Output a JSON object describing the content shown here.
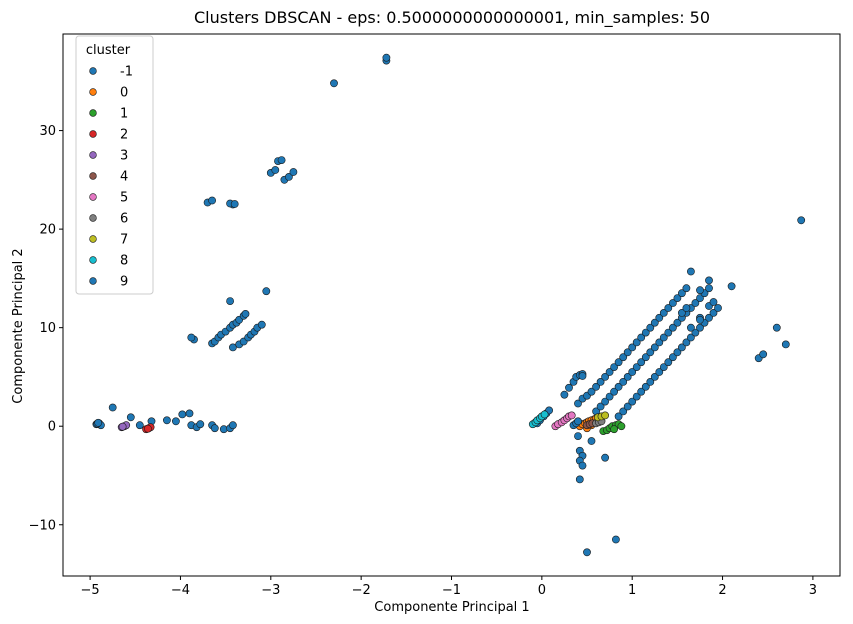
{
  "chart_data": {
    "type": "scatter",
    "title": "Clusters DBSCAN - eps: 0.5000000000000001, min_samples: 50",
    "xlabel": "Componente Principal 1",
    "ylabel": "Componente Principal 2",
    "xlim": [
      -5.3,
      3.3
    ],
    "ylim": [
      -15.2,
      39.8
    ],
    "xticks": [
      -5,
      -4,
      -3,
      -2,
      -1,
      0,
      1,
      2,
      3
    ],
    "yticks": [
      -10,
      0,
      10,
      20,
      30
    ],
    "grid": false,
    "legend": {
      "title": "cluster",
      "position": "top-left"
    },
    "series": [
      {
        "name": "-1",
        "color": "#1f77b4",
        "points": [
          [
            -4.93,
            0.2
          ],
          [
            -4.9,
            0.3
          ],
          [
            -4.88,
            0.1
          ],
          [
            -4.92,
            0.25
          ],
          [
            -4.91,
            0.35
          ],
          [
            -4.75,
            1.9
          ],
          [
            -4.55,
            0.9
          ],
          [
            -4.45,
            0.1
          ],
          [
            -4.32,
            0.5
          ],
          [
            -4.15,
            0.6
          ],
          [
            -4.05,
            0.5
          ],
          [
            -3.98,
            1.2
          ],
          [
            -3.9,
            1.3
          ],
          [
            -3.88,
            0.1
          ],
          [
            -3.82,
            -0.1
          ],
          [
            -3.78,
            0.2
          ],
          [
            -3.65,
            0.1
          ],
          [
            -3.62,
            -0.2
          ],
          [
            -3.52,
            -0.3
          ],
          [
            -3.45,
            -0.2
          ],
          [
            -3.42,
            0.1
          ],
          [
            -3.85,
            8.8
          ],
          [
            -3.88,
            9.0
          ],
          [
            -3.65,
            8.4
          ],
          [
            -3.62,
            8.6
          ],
          [
            -3.58,
            9.0
          ],
          [
            -3.55,
            9.3
          ],
          [
            -3.5,
            9.6
          ],
          [
            -3.45,
            10.0
          ],
          [
            -3.42,
            10.3
          ],
          [
            -3.38,
            10.5
          ],
          [
            -3.35,
            10.8
          ],
          [
            -3.3,
            11.2
          ],
          [
            -3.28,
            11.4
          ],
          [
            -3.45,
            12.7
          ],
          [
            -3.42,
            8.0
          ],
          [
            -3.35,
            8.3
          ],
          [
            -3.3,
            8.6
          ],
          [
            -3.25,
            9.0
          ],
          [
            -3.22,
            9.3
          ],
          [
            -3.18,
            9.6
          ],
          [
            -3.15,
            10.0
          ],
          [
            -3.1,
            10.3
          ],
          [
            -3.05,
            13.7
          ],
          [
            -3.7,
            22.7
          ],
          [
            -3.65,
            22.9
          ],
          [
            -3.42,
            22.5
          ],
          [
            -3.45,
            22.6
          ],
          [
            -3.4,
            22.55
          ],
          [
            -3.0,
            25.7
          ],
          [
            -2.95,
            26.0
          ],
          [
            -2.92,
            26.9
          ],
          [
            -2.88,
            27.0
          ],
          [
            -2.85,
            25.0
          ],
          [
            -2.8,
            25.3
          ],
          [
            -2.75,
            25.8
          ],
          [
            -2.3,
            34.8
          ],
          [
            -1.72,
            37.1
          ],
          [
            -1.72,
            37.4
          ],
          [
            -0.05,
            0.3
          ],
          [
            -0.02,
            0.6
          ],
          [
            0.02,
            1.0
          ],
          [
            0.05,
            1.3
          ],
          [
            0.08,
            1.6
          ],
          [
            0.25,
            3.2
          ],
          [
            0.3,
            3.9
          ],
          [
            0.35,
            4.5
          ],
          [
            0.38,
            5.0
          ],
          [
            0.42,
            5.2
          ],
          [
            0.45,
            5.3
          ],
          [
            0.4,
            2.3
          ],
          [
            0.45,
            2.8
          ],
          [
            0.5,
            3.1
          ],
          [
            0.55,
            3.5
          ],
          [
            0.6,
            4.0
          ],
          [
            0.65,
            4.5
          ],
          [
            0.7,
            5.0
          ],
          [
            0.75,
            5.5
          ],
          [
            0.8,
            6.0
          ],
          [
            0.85,
            6.5
          ],
          [
            0.9,
            7.0
          ],
          [
            0.95,
            7.5
          ],
          [
            1.0,
            8.0
          ],
          [
            1.05,
            8.5
          ],
          [
            1.1,
            9.0
          ],
          [
            1.15,
            9.5
          ],
          [
            1.2,
            10.0
          ],
          [
            1.25,
            10.5
          ],
          [
            1.3,
            11.0
          ],
          [
            1.35,
            11.5
          ],
          [
            1.4,
            12.0
          ],
          [
            1.45,
            12.5
          ],
          [
            1.5,
            13.0
          ],
          [
            1.55,
            13.5
          ],
          [
            1.6,
            14.0
          ],
          [
            1.65,
            15.7
          ],
          [
            0.6,
            1.5
          ],
          [
            0.65,
            2.0
          ],
          [
            0.7,
            2.5
          ],
          [
            0.75,
            3.0
          ],
          [
            0.8,
            3.5
          ],
          [
            0.85,
            4.0
          ],
          [
            0.9,
            4.5
          ],
          [
            0.95,
            5.0
          ],
          [
            1.0,
            5.5
          ],
          [
            1.05,
            6.0
          ],
          [
            1.1,
            6.5
          ],
          [
            1.15,
            7.0
          ],
          [
            1.2,
            7.5
          ],
          [
            1.25,
            8.0
          ],
          [
            1.3,
            8.5
          ],
          [
            1.35,
            9.0
          ],
          [
            1.4,
            9.5
          ],
          [
            1.45,
            10.0
          ],
          [
            1.5,
            10.5
          ],
          [
            1.55,
            11.0
          ],
          [
            1.6,
            11.5
          ],
          [
            1.65,
            12.0
          ],
          [
            1.7,
            12.5
          ],
          [
            1.75,
            13.0
          ],
          [
            1.8,
            13.5
          ],
          [
            1.85,
            14.0
          ],
          [
            0.85,
            1.0
          ],
          [
            0.9,
            1.5
          ],
          [
            0.95,
            2.0
          ],
          [
            1.0,
            2.5
          ],
          [
            1.05,
            3.0
          ],
          [
            1.1,
            3.5
          ],
          [
            1.15,
            4.0
          ],
          [
            1.2,
            4.5
          ],
          [
            1.25,
            5.0
          ],
          [
            1.3,
            5.5
          ],
          [
            1.35,
            6.0
          ],
          [
            1.4,
            6.5
          ],
          [
            1.45,
            7.0
          ],
          [
            1.5,
            7.5
          ],
          [
            1.55,
            8.0
          ],
          [
            1.6,
            8.5
          ],
          [
            1.65,
            9.0
          ],
          [
            1.7,
            9.5
          ],
          [
            1.75,
            10.0
          ],
          [
            1.8,
            10.5
          ],
          [
            1.85,
            11.0
          ],
          [
            1.9,
            11.5
          ],
          [
            1.95,
            12.0
          ],
          [
            1.55,
            11.5
          ],
          [
            1.6,
            12.0
          ],
          [
            1.75,
            13.8
          ],
          [
            1.85,
            14.8
          ],
          [
            2.1,
            14.2
          ],
          [
            1.75,
            11.0
          ],
          [
            1.85,
            12.2
          ],
          [
            1.9,
            12.6
          ],
          [
            1.75,
            10.8
          ],
          [
            1.65,
            10.0
          ],
          [
            0.45,
            5.1
          ],
          [
            0.4,
            -1.0
          ],
          [
            0.42,
            -2.5
          ],
          [
            0.45,
            -3.0
          ],
          [
            0.42,
            -3.5
          ],
          [
            0.45,
            -4.0
          ],
          [
            0.42,
            -5.4
          ],
          [
            0.55,
            -1.5
          ],
          [
            0.7,
            -3.2
          ],
          [
            0.5,
            -12.8
          ],
          [
            0.82,
            -11.5
          ],
          [
            2.4,
            6.9
          ],
          [
            2.45,
            7.3
          ],
          [
            2.6,
            10.0
          ],
          [
            2.7,
            8.3
          ],
          [
            2.87,
            20.9
          ]
        ]
      },
      {
        "name": "0",
        "color": "#ff7f0e",
        "points": [
          [
            0.42,
            0.0
          ],
          [
            0.45,
            0.2
          ],
          [
            0.48,
            0.3
          ],
          [
            0.5,
            0.4
          ],
          [
            0.52,
            0.5
          ],
          [
            0.55,
            0.6
          ],
          [
            0.58,
            0.7
          ],
          [
            0.6,
            0.8
          ],
          [
            0.62,
            0.5
          ],
          [
            0.5,
            -0.2
          ],
          [
            0.55,
            0.1
          ]
        ]
      },
      {
        "name": "1",
        "color": "#2ca02c",
        "points": [
          [
            0.68,
            -0.5
          ],
          [
            0.72,
            -0.4
          ],
          [
            0.75,
            -0.2
          ],
          [
            0.78,
            0.0
          ],
          [
            0.82,
            0.1
          ],
          [
            0.85,
            0.2
          ],
          [
            0.8,
            -0.3
          ],
          [
            0.88,
            0.0
          ]
        ]
      },
      {
        "name": "2",
        "color": "#d62728",
        "points": [
          [
            -4.38,
            -0.3
          ],
          [
            -4.35,
            -0.2
          ],
          [
            -4.33,
            -0.1
          ],
          [
            -4.36,
            -0.25
          ]
        ]
      },
      {
        "name": "3",
        "color": "#9467bd",
        "points": [
          [
            -4.65,
            -0.1
          ],
          [
            -4.62,
            0.0
          ],
          [
            -4.6,
            0.1
          ],
          [
            -4.64,
            -0.05
          ]
        ]
      },
      {
        "name": "4",
        "color": "#8c564b",
        "points": [
          [
            0.5,
            0.1
          ],
          [
            0.53,
            0.2
          ],
          [
            0.56,
            0.3
          ]
        ]
      },
      {
        "name": "5",
        "color": "#e377c2",
        "points": [
          [
            0.15,
            0.0
          ],
          [
            0.18,
            0.2
          ],
          [
            0.22,
            0.4
          ],
          [
            0.25,
            0.6
          ],
          [
            0.28,
            0.8
          ],
          [
            0.3,
            1.0
          ],
          [
            0.33,
            1.1
          ]
        ]
      },
      {
        "name": "6",
        "color": "#7f7f7f",
        "points": [
          [
            0.6,
            0.3
          ],
          [
            0.63,
            0.4
          ],
          [
            0.66,
            0.5
          ]
        ]
      },
      {
        "name": "7",
        "color": "#bcbd22",
        "points": [
          [
            0.62,
            0.9
          ],
          [
            0.66,
            1.0
          ],
          [
            0.7,
            1.1
          ]
        ]
      },
      {
        "name": "8",
        "color": "#17becf",
        "points": [
          [
            -0.1,
            0.2
          ],
          [
            -0.07,
            0.4
          ],
          [
            -0.05,
            0.6
          ],
          [
            -0.02,
            0.8
          ],
          [
            0.0,
            1.0
          ],
          [
            0.03,
            1.2
          ]
        ]
      },
      {
        "name": "9",
        "color": "#1f77b4",
        "points": [
          [
            0.35,
            0.1
          ],
          [
            0.38,
            0.3
          ],
          [
            0.4,
            0.5
          ]
        ]
      }
    ]
  }
}
